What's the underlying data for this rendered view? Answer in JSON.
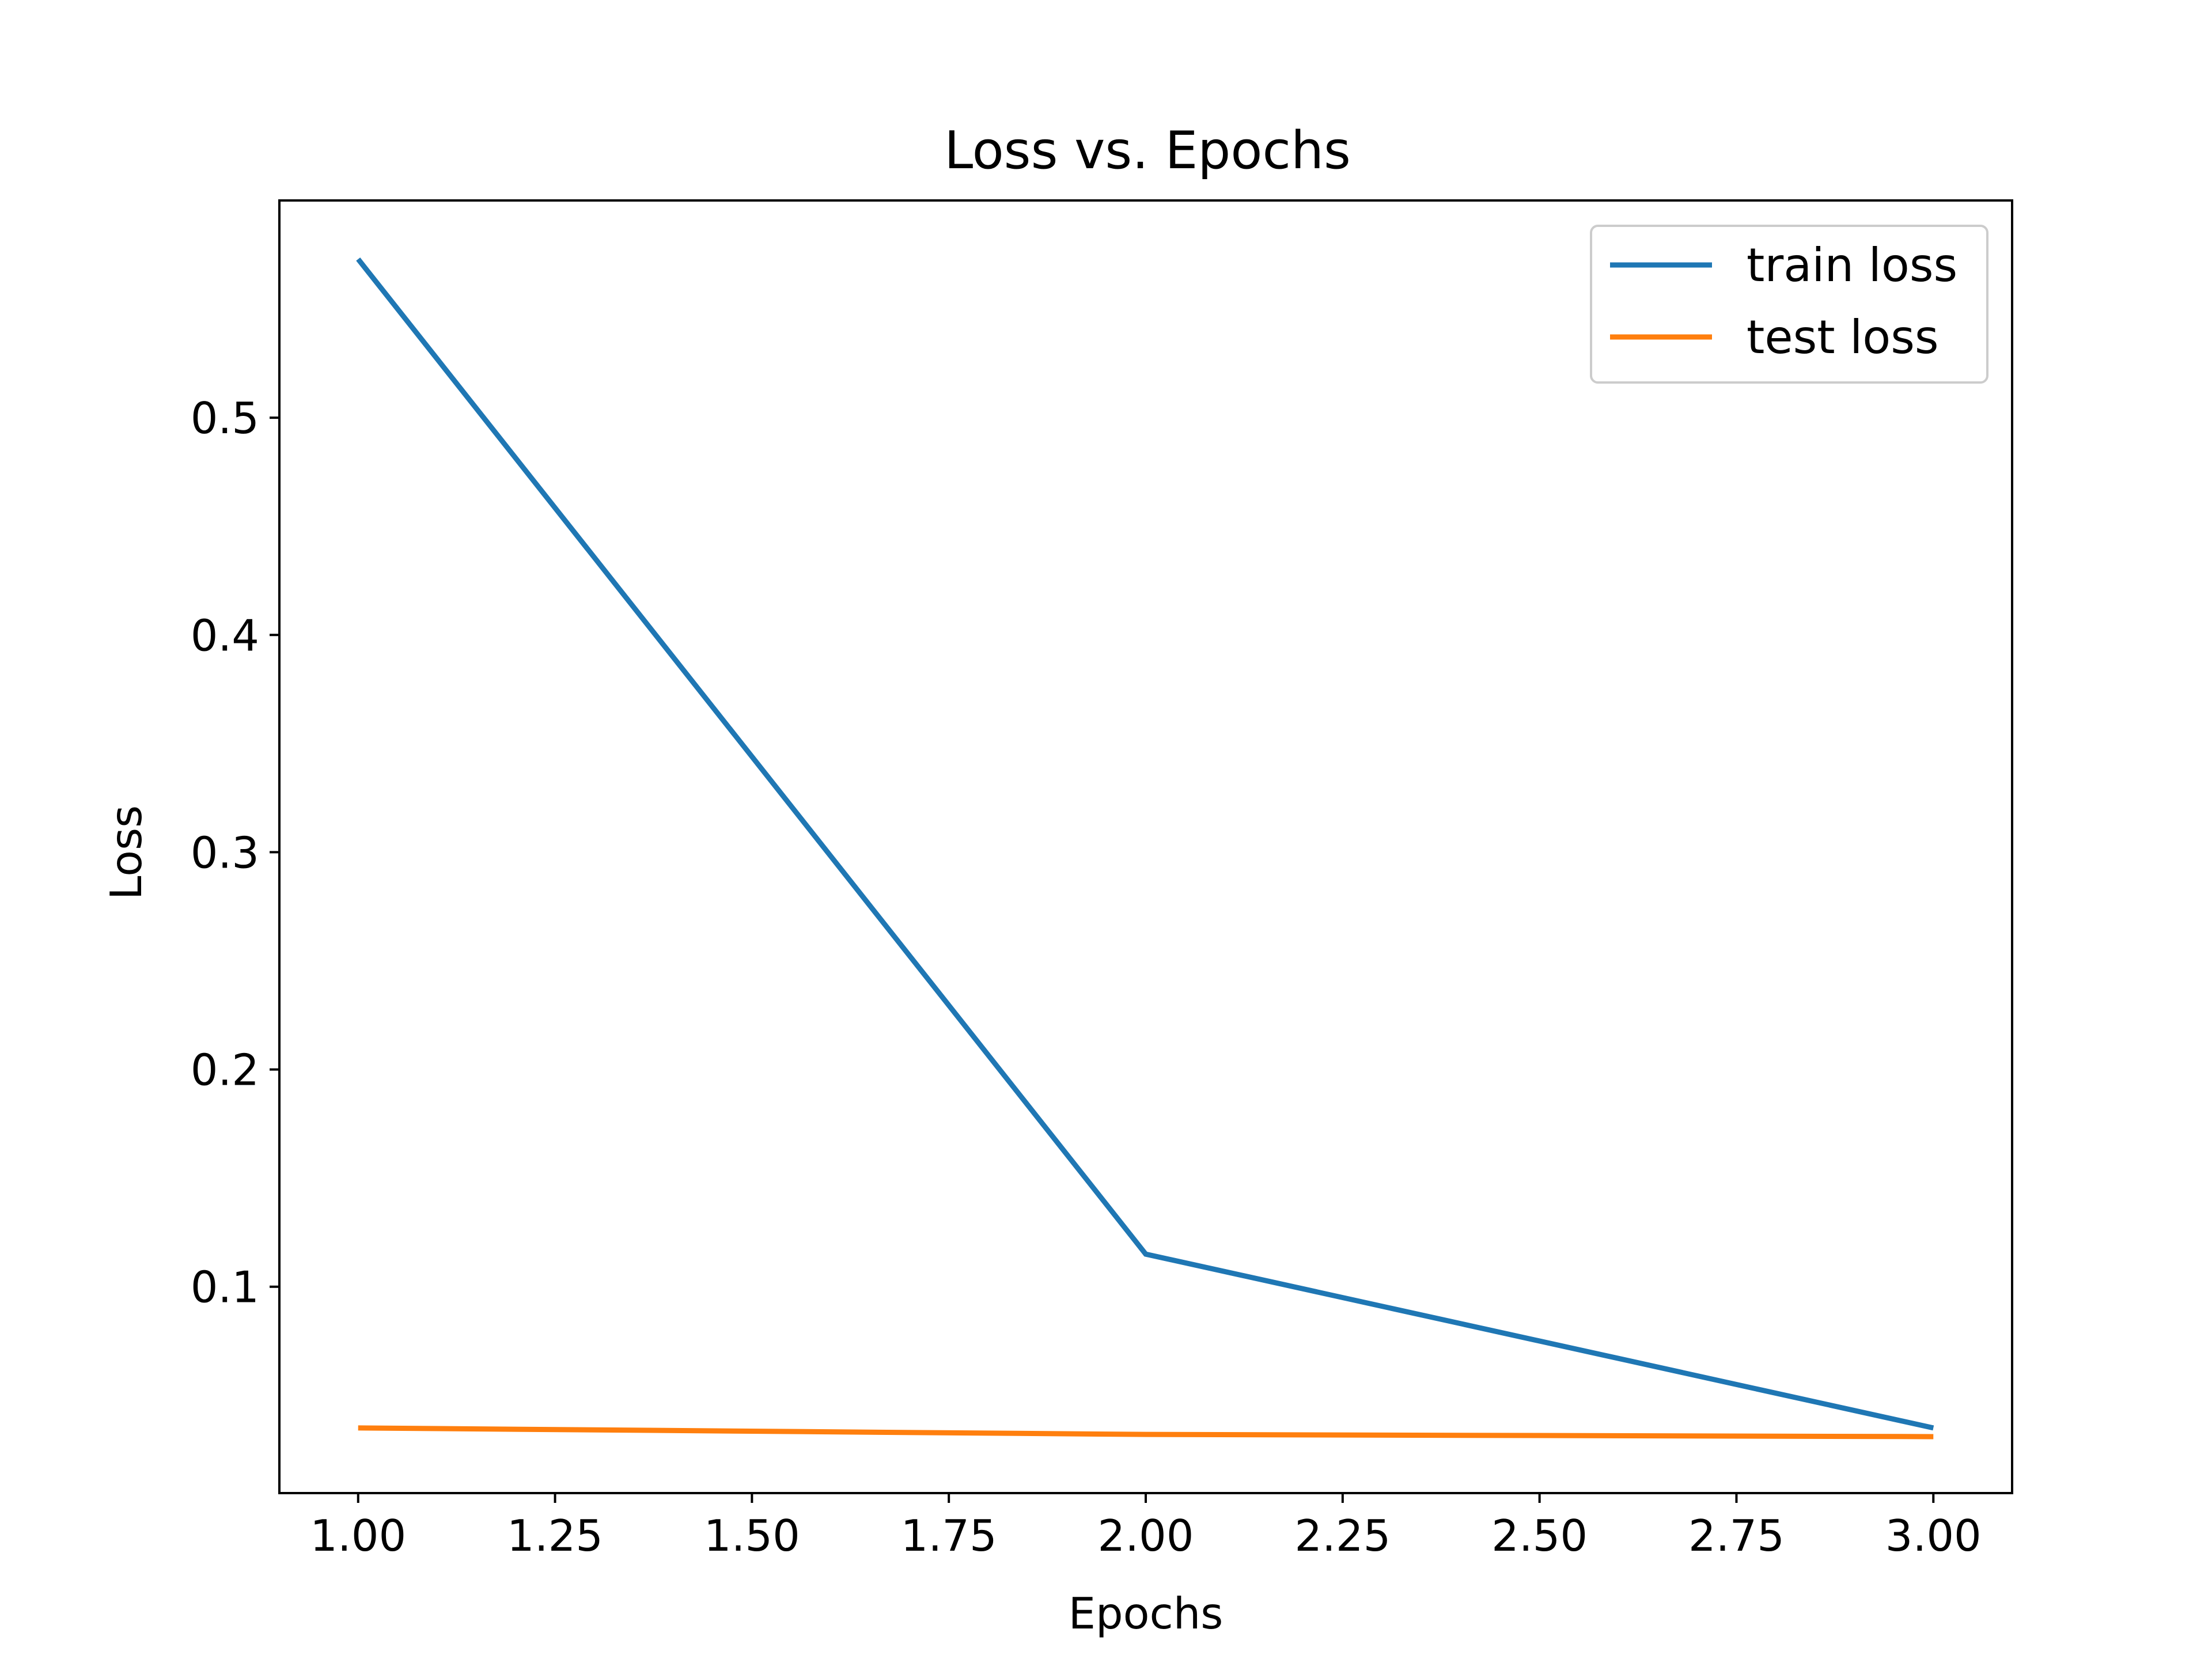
{
  "chart_data": {
    "type": "line",
    "title": "Loss vs. Epochs",
    "xlabel": "Epochs",
    "ylabel": "Loss",
    "xlim": [
      0.9,
      3.1
    ],
    "ylim": [
      0.005,
      0.6
    ],
    "x_ticks": [
      1.0,
      1.25,
      1.5,
      1.75,
      2.0,
      2.25,
      2.5,
      2.75,
      3.0
    ],
    "x_tick_labels": [
      "1.00",
      "1.25",
      "1.50",
      "1.75",
      "2.00",
      "2.25",
      "2.50",
      "2.75",
      "3.00"
    ],
    "y_ticks": [
      0.1,
      0.2,
      0.3,
      0.4,
      0.5
    ],
    "y_tick_labels": [
      "0.1",
      "0.2",
      "0.3",
      "0.4",
      "0.5"
    ],
    "grid": false,
    "legend_position": "top-right",
    "x": [
      1,
      2,
      3
    ],
    "series": [
      {
        "name": "train loss",
        "color": "#1f77b4",
        "values": [
          0.573,
          0.115,
          0.035
        ]
      },
      {
        "name": "test loss",
        "color": "#ff7f0e",
        "values": [
          0.035,
          0.032,
          0.031
        ]
      }
    ]
  }
}
